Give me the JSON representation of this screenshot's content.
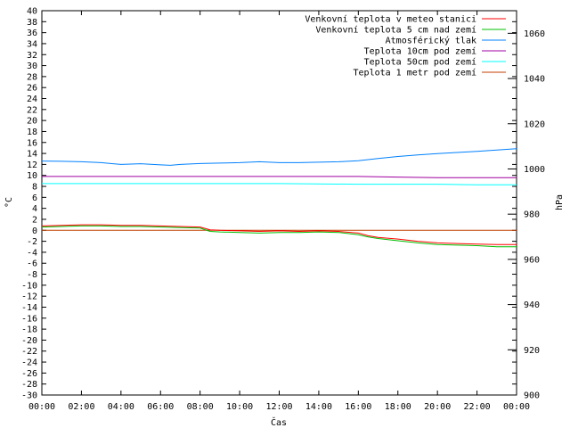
{
  "chart_data": {
    "type": "line",
    "xlabel": "Čas",
    "ylabel": "°C",
    "y2label": "hPa",
    "xlim": [
      0,
      24
    ],
    "ylim": [
      -30,
      40
    ],
    "y2lim": [
      900,
      1070
    ],
    "x_ticks": [
      0,
      2,
      4,
      6,
      8,
      10,
      12,
      14,
      16,
      18,
      20,
      22,
      24
    ],
    "x_tick_labels": [
      "00:00",
      "02:00",
      "04:00",
      "06:00",
      "08:00",
      "10:00",
      "12:00",
      "14:00",
      "16:00",
      "18:00",
      "20:00",
      "22:00",
      "00:00"
    ],
    "y_ticks": [
      -30,
      -28,
      -26,
      -24,
      -22,
      -20,
      -18,
      -16,
      -14,
      -12,
      -10,
      -8,
      -6,
      -4,
      -2,
      0,
      2,
      4,
      6,
      8,
      10,
      12,
      14,
      16,
      18,
      20,
      22,
      24,
      26,
      28,
      30,
      32,
      34,
      36,
      38,
      40
    ],
    "y2_ticks": [
      900,
      920,
      940,
      960,
      980,
      1000,
      1020,
      1040,
      1060
    ],
    "grid": false,
    "legend_position": "top-right",
    "series": [
      {
        "name": "Venkovní teplota v meteo stanici",
        "color": "#ff0000",
        "axis": "y",
        "x": [
          0,
          1,
          2,
          3,
          4,
          5,
          6,
          7,
          8,
          8.5,
          9,
          10,
          11,
          12,
          13,
          14,
          15,
          16,
          16.5,
          17,
          18,
          19,
          20,
          21,
          22,
          23,
          24
        ],
        "y": [
          0.8,
          0.9,
          1.0,
          1.0,
          0.9,
          0.9,
          0.8,
          0.7,
          0.6,
          0.1,
          0.0,
          -0.1,
          -0.2,
          -0.1,
          -0.2,
          -0.1,
          -0.2,
          -0.5,
          -1.0,
          -1.3,
          -1.6,
          -2.0,
          -2.3,
          -2.4,
          -2.5,
          -2.6,
          -2.6
        ]
      },
      {
        "name": "Venkovní teplota 5 cm nad zemí",
        "color": "#00c000",
        "axis": "y",
        "x": [
          0,
          1,
          2,
          3,
          4,
          5,
          6,
          7,
          8,
          8.5,
          9,
          10,
          11,
          12,
          13,
          14,
          15,
          16,
          16.5,
          17,
          18,
          19,
          20,
          21,
          22,
          23,
          24
        ],
        "y": [
          0.6,
          0.7,
          0.8,
          0.8,
          0.7,
          0.7,
          0.6,
          0.5,
          0.4,
          -0.2,
          -0.3,
          -0.4,
          -0.5,
          -0.4,
          -0.4,
          -0.3,
          -0.4,
          -0.8,
          -1.2,
          -1.5,
          -1.9,
          -2.3,
          -2.6,
          -2.7,
          -2.8,
          -3.0,
          -3.0
        ]
      },
      {
        "name": "Atmosférický tlak",
        "color": "#0080ff",
        "axis": "y2",
        "x": [
          0,
          1,
          2,
          3,
          4,
          5,
          6,
          6.5,
          7,
          8,
          9,
          10,
          11,
          12,
          13,
          14,
          15,
          16,
          17,
          18,
          19,
          20,
          21,
          22,
          23,
          24
        ],
        "y": [
          1003.5,
          1003.4,
          1003.2,
          1002.8,
          1002.0,
          1002.3,
          1001.8,
          1001.6,
          1002.0,
          1002.4,
          1002.6,
          1002.8,
          1003.2,
          1002.8,
          1002.8,
          1003.0,
          1003.2,
          1003.6,
          1004.6,
          1005.5,
          1006.2,
          1006.8,
          1007.3,
          1007.8,
          1008.4,
          1009.0
        ]
      },
      {
        "name": "Teplota 10cm pod zemí",
        "color": "#a000a0",
        "axis": "y",
        "x": [
          0,
          4,
          8,
          12,
          16,
          18,
          20,
          24
        ],
        "y": [
          9.8,
          9.8,
          9.8,
          9.8,
          9.8,
          9.7,
          9.6,
          9.6
        ]
      },
      {
        "name": "Teplota 50cm pod zemí",
        "color": "#00ffff",
        "axis": "y",
        "x": [
          0,
          4,
          8,
          12,
          16,
          18,
          20,
          22,
          24
        ],
        "y": [
          8.5,
          8.5,
          8.5,
          8.5,
          8.4,
          8.4,
          8.4,
          8.3,
          8.3
        ]
      },
      {
        "name": "Teplota 1 metr pod zemí",
        "color": "#c04000",
        "axis": "y",
        "x": [
          0,
          4,
          8,
          12,
          16,
          20,
          24
        ],
        "y": [
          0,
          0,
          0,
          0,
          0,
          0,
          0
        ]
      }
    ]
  }
}
